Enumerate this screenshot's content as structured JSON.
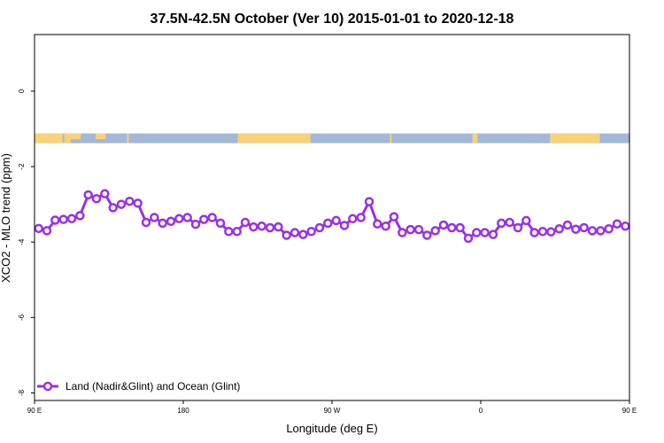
{
  "chart_data": {
    "type": "line",
    "title": "37.5N-42.5N October (Ver 10)   2015-01-01 to 2020-12-18",
    "xlabel": "Longitude (deg E)",
    "ylabel": "XCO2 - MLO trend (ppm)",
    "xlim": [
      90,
      450
    ],
    "ylim": [
      -8.2,
      1.5
    ],
    "x_ticks": [
      {
        "value": 90,
        "label": "90 E"
      },
      {
        "value": 180,
        "label": "180"
      },
      {
        "value": 270,
        "label": "90 W"
      },
      {
        "value": 360,
        "label": "0"
      },
      {
        "value": 450,
        "label": "90 E"
      },
      {
        "value": 540,
        "label": "180"
      }
    ],
    "y_ticks": [
      {
        "value": 0,
        "label": "0"
      },
      {
        "value": -2,
        "label": "-2"
      },
      {
        "value": -4,
        "label": "-4"
      },
      {
        "value": -6,
        "label": "-6"
      },
      {
        "value": -8,
        "label": "-8"
      }
    ],
    "grid": false,
    "legend_position": "bottom-left",
    "series": [
      {
        "name": "Land (Nadir&Glint) and Ocean (Glint)",
        "color": "#9b30e6",
        "x": [
          92.5,
          97.5,
          102.5,
          107.5,
          112.5,
          117.5,
          122.5,
          127.5,
          132.5,
          137.5,
          142.5,
          147.5,
          152.5,
          157.5,
          162.5,
          167.5,
          172.5,
          177.5,
          182.5,
          187.5,
          192.5,
          197.5,
          202.5,
          207.5,
          212.5,
          217.5,
          222.5,
          227.5,
          232.5,
          237.5,
          242.5,
          247.5,
          252.5,
          257.5,
          262.5,
          267.5,
          272.5,
          277.5,
          282.5,
          287.5,
          292.5,
          297.5,
          302.5,
          307.5,
          312.5,
          317.5,
          322.5,
          327.5,
          332.5,
          337.5,
          342.5,
          347.5,
          352.5,
          357.5,
          362.5,
          367.5,
          372.5,
          377.5,
          382.5,
          387.5,
          392.5,
          397.5,
          402.5,
          407.5,
          412.5,
          417.5,
          422.5,
          427.5,
          432.5,
          437.5,
          442.5,
          447.5
        ],
        "values": [
          -3.64,
          -3.7,
          -3.42,
          -3.4,
          -3.38,
          -3.3,
          -2.75,
          -2.85,
          -2.72,
          -3.09,
          -3.0,
          -2.92,
          -2.97,
          -3.48,
          -3.35,
          -3.5,
          -3.45,
          -3.38,
          -3.35,
          -3.53,
          -3.4,
          -3.35,
          -3.5,
          -3.72,
          -3.72,
          -3.48,
          -3.6,
          -3.58,
          -3.62,
          -3.6,
          -3.82,
          -3.75,
          -3.8,
          -3.72,
          -3.62,
          -3.5,
          -3.43,
          -3.56,
          -3.38,
          -3.35,
          -2.93,
          -3.52,
          -3.58,
          -3.33,
          -3.75,
          -3.67,
          -3.67,
          -3.82,
          -3.7,
          -3.55,
          -3.62,
          -3.62,
          -3.9,
          -3.75,
          -3.75,
          -3.8,
          -3.5,
          -3.48,
          -3.62,
          -3.43,
          -3.75,
          -3.72,
          -3.73,
          -3.65,
          -3.55,
          -3.66,
          -3.62,
          -3.7,
          -3.7,
          -3.65,
          -3.52,
          -3.58
        ]
      }
    ],
    "surface_strip": {
      "y_center": -1.25,
      "land_color": "#f7d27a",
      "ocean_color": "#a3b8d8",
      "land_segments": [
        [
          90,
          107
        ],
        [
          108,
          118
        ],
        [
          127,
          133
        ],
        [
          146,
          147
        ],
        [
          213,
          257
        ],
        [
          305,
          306
        ],
        [
          355,
          358
        ],
        [
          402,
          432
        ]
      ],
      "land_patches": [
        [
          112,
          118
        ],
        [
          127,
          133
        ],
        [
          150,
          153
        ],
        [
          360,
          365
        ],
        [
          384,
          395
        ],
        [
          443,
          445
        ]
      ]
    }
  }
}
